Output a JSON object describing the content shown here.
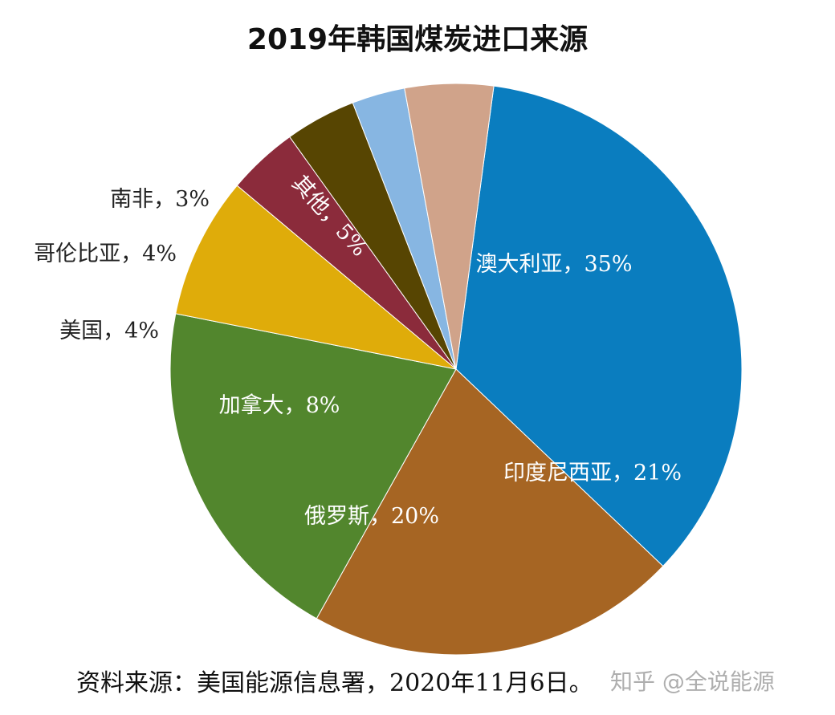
{
  "chart_data": {
    "type": "pie",
    "title": "2019年韩国煤炭进口来源",
    "slices": [
      {
        "label": "澳大利亚，35%",
        "value": 35,
        "color": "#0a7dbf"
      },
      {
        "label": "印度尼西亚，21%",
        "value": 21,
        "color": "#a66523"
      },
      {
        "label": "俄罗斯，20%",
        "value": 20,
        "color": "#52862d"
      },
      {
        "label": "加拿大，8%",
        "value": 8,
        "color": "#dfac0a"
      },
      {
        "label": "美国，4%",
        "value": 4,
        "color": "#8b2b3b"
      },
      {
        "label": "哥伦比亚，4%",
        "value": 4,
        "color": "#574502"
      },
      {
        "label": "南非，3%",
        "value": 3,
        "color": "#87b6e2"
      },
      {
        "label": "其他，5%",
        "value": 5,
        "color": "#d0a38a"
      }
    ]
  },
  "footer": {
    "source": "资料来源：美国能源信息署，2020年11月6日。",
    "watermark": "知乎 @全说能源"
  }
}
